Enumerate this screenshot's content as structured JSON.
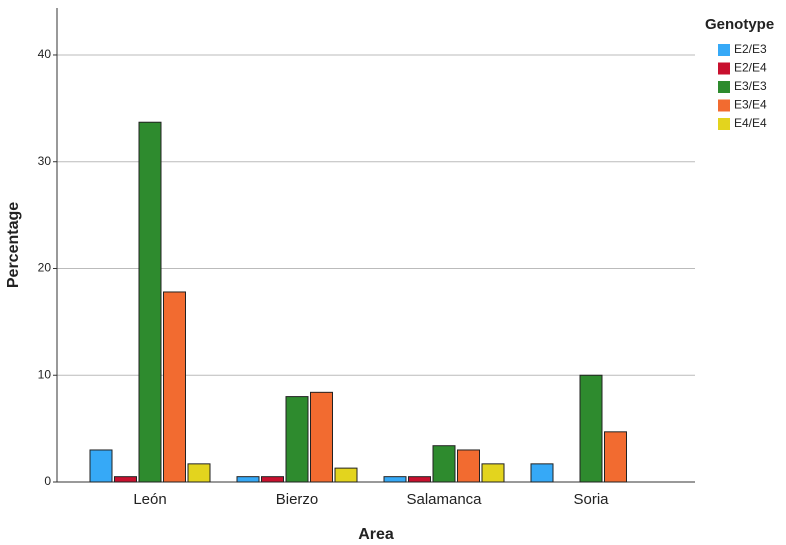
{
  "chart_data": {
    "type": "bar",
    "x_label": "Area",
    "y_label": "Percentage",
    "categories": [
      "León",
      "Bierzo",
      "Salamanca",
      "Soria"
    ],
    "legend_title": "Genotype",
    "series": [
      {
        "name": "E2/E3",
        "color": "#36a9f7",
        "values": [
          3.0,
          0.5,
          0.5,
          1.7
        ]
      },
      {
        "name": "E2/E4",
        "color": "#c8102e",
        "values": [
          0.5,
          0.5,
          0.5,
          null
        ]
      },
      {
        "name": "E3/E3",
        "color": "#2e8b2e",
        "values": [
          33.7,
          8.0,
          3.4,
          10.0
        ]
      },
      {
        "name": "E3/E4",
        "color": "#f26b30",
        "values": [
          17.8,
          8.4,
          3.0,
          4.7
        ]
      },
      {
        "name": "E4/E4",
        "color": "#e3d41e",
        "values": [
          1.7,
          1.3,
          1.7,
          null
        ]
      }
    ],
    "ylim": [
      0,
      44.4
    ],
    "yticks": [
      0,
      10,
      20,
      30,
      40
    ],
    "grid": true,
    "legend": "right"
  }
}
